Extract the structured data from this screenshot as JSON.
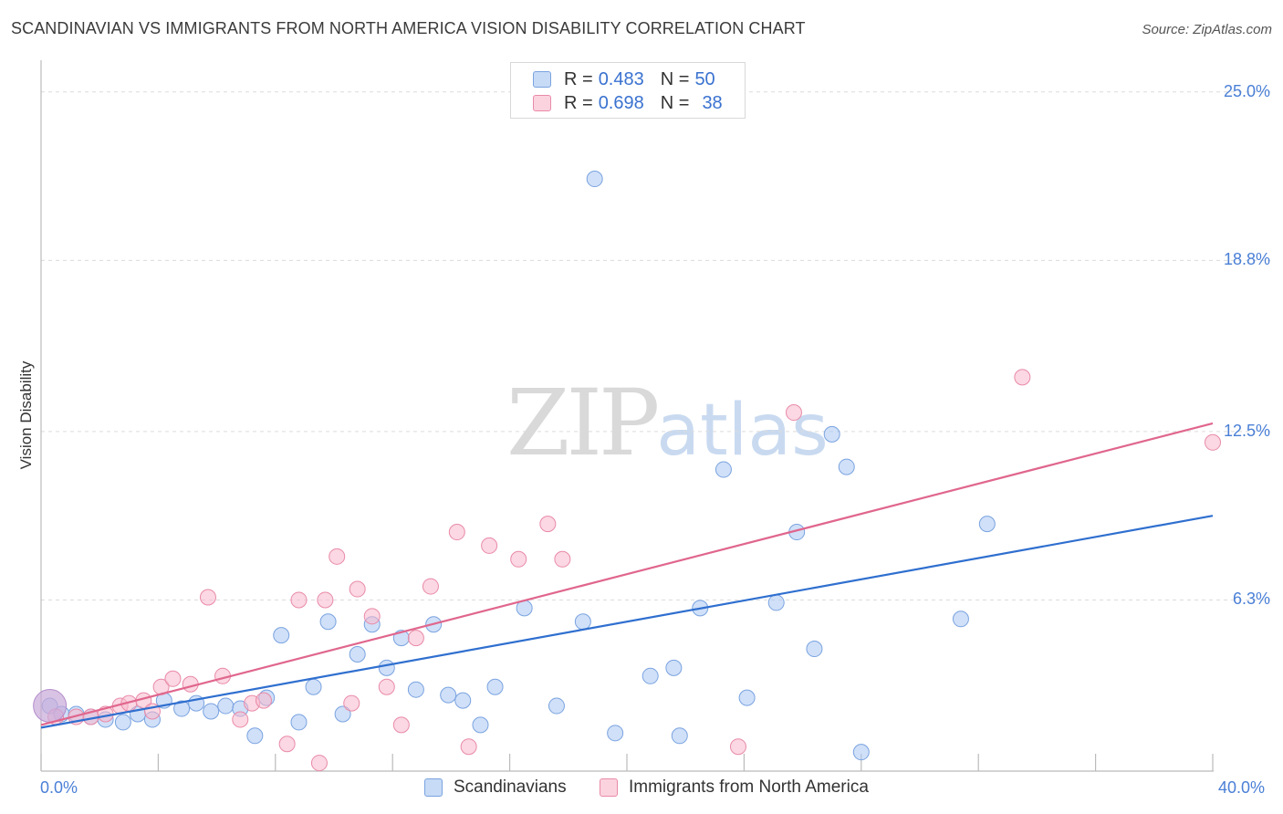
{
  "title": "SCANDINAVIAN VS IMMIGRANTS FROM NORTH AMERICA VISION DISABILITY CORRELATION CHART",
  "source": "Source: ZipAtlas.com",
  "watermark": {
    "zip": "ZIP",
    "atlas": "atlas"
  },
  "legend": {
    "rows": [
      {
        "r_label": "R =",
        "r_value": "0.483",
        "n_label": "N =",
        "n_value": "50",
        "color": "#a9c7f2"
      },
      {
        "r_label": "R =",
        "r_value": "0.698",
        "n_label": "N =",
        "n_value": "38",
        "color": "#f7b8cc"
      }
    ]
  },
  "bottom_legend": [
    "Scandinavians",
    "Immigrants from North America"
  ],
  "colors": {
    "blue_fill": "#a9c7f2",
    "blue_stroke": "#7aa3e0",
    "blue_line": "#2f6fcf",
    "pink_fill": "#f7b8cc",
    "pink_stroke": "#e98aa8",
    "pink_line": "#e0668d",
    "grid": "#dcdcdc",
    "tick_text": "#4a7fd6"
  },
  "chart_data": {
    "type": "scatter",
    "xlabel": "",
    "ylabel": "Vision Disability",
    "xlim": [
      0,
      40
    ],
    "ylim": [
      0,
      26
    ],
    "x_ticks": [
      "0.0%",
      "40.0%"
    ],
    "y_ticks": [
      {
        "value": 6.3,
        "label": "6.3%"
      },
      {
        "value": 12.5,
        "label": "12.5%"
      },
      {
        "value": 18.8,
        "label": "18.8%"
      },
      {
        "value": 25.0,
        "label": "25.0%"
      }
    ],
    "grid": true,
    "series": [
      {
        "name": "Scandinavians",
        "points": [
          [
            0.3,
            2.4
          ],
          [
            0.7,
            2.1
          ],
          [
            1.2,
            2.1
          ],
          [
            1.7,
            2.0
          ],
          [
            2.2,
            1.9
          ],
          [
            2.8,
            1.8
          ],
          [
            3.3,
            2.1
          ],
          [
            3.8,
            1.9
          ],
          [
            4.2,
            2.6
          ],
          [
            4.8,
            2.3
          ],
          [
            5.3,
            2.5
          ],
          [
            5.8,
            2.2
          ],
          [
            6.3,
            2.4
          ],
          [
            6.8,
            2.3
          ],
          [
            7.3,
            1.3
          ],
          [
            7.7,
            2.7
          ],
          [
            8.2,
            5.0
          ],
          [
            8.8,
            1.8
          ],
          [
            9.3,
            3.1
          ],
          [
            9.8,
            5.5
          ],
          [
            10.3,
            2.1
          ],
          [
            10.8,
            4.3
          ],
          [
            11.3,
            5.4
          ],
          [
            11.8,
            3.8
          ],
          [
            12.3,
            4.9
          ],
          [
            12.8,
            3.0
          ],
          [
            13.4,
            5.4
          ],
          [
            13.9,
            2.8
          ],
          [
            14.4,
            2.6
          ],
          [
            15.0,
            1.7
          ],
          [
            15.5,
            3.1
          ],
          [
            16.5,
            6.0
          ],
          [
            17.6,
            2.4
          ],
          [
            18.5,
            5.5
          ],
          [
            18.9,
            21.8
          ],
          [
            19.6,
            1.4
          ],
          [
            20.8,
            3.5
          ],
          [
            21.6,
            3.8
          ],
          [
            21.8,
            1.3
          ],
          [
            22.5,
            6.0
          ],
          [
            23.3,
            11.1
          ],
          [
            24.1,
            2.7
          ],
          [
            25.1,
            6.2
          ],
          [
            25.8,
            8.8
          ],
          [
            26.4,
            4.5
          ],
          [
            27.0,
            12.4
          ],
          [
            27.5,
            11.2
          ],
          [
            28.0,
            0.7
          ],
          [
            31.4,
            5.6
          ],
          [
            32.3,
            9.1
          ]
        ]
      },
      {
        "name": "Immigrants from North America",
        "points": [
          [
            0.5,
            2.0
          ],
          [
            1.2,
            2.0
          ],
          [
            1.7,
            2.0
          ],
          [
            2.2,
            2.1
          ],
          [
            2.7,
            2.4
          ],
          [
            3.0,
            2.5
          ],
          [
            3.5,
            2.6
          ],
          [
            3.8,
            2.2
          ],
          [
            4.1,
            3.1
          ],
          [
            4.5,
            3.4
          ],
          [
            5.1,
            3.2
          ],
          [
            5.7,
            6.4
          ],
          [
            6.2,
            3.5
          ],
          [
            6.8,
            1.9
          ],
          [
            7.2,
            2.5
          ],
          [
            7.6,
            2.6
          ],
          [
            8.4,
            1.0
          ],
          [
            8.8,
            6.3
          ],
          [
            9.5,
            0.3
          ],
          [
            9.7,
            6.3
          ],
          [
            10.1,
            7.9
          ],
          [
            10.6,
            2.5
          ],
          [
            10.8,
            6.7
          ],
          [
            11.3,
            5.7
          ],
          [
            11.8,
            3.1
          ],
          [
            12.3,
            1.7
          ],
          [
            12.8,
            4.9
          ],
          [
            13.3,
            6.8
          ],
          [
            14.2,
            8.8
          ],
          [
            14.6,
            0.9
          ],
          [
            15.3,
            8.3
          ],
          [
            16.3,
            7.8
          ],
          [
            17.3,
            9.1
          ],
          [
            17.8,
            7.8
          ],
          [
            23.8,
            0.9
          ],
          [
            25.7,
            13.2
          ],
          [
            33.5,
            14.5
          ],
          [
            40.0,
            12.1
          ]
        ]
      }
    ],
    "trendlines": [
      {
        "name": "Scandinavians",
        "x": [
          0,
          40
        ],
        "y": [
          1.6,
          9.4
        ]
      },
      {
        "name": "Immigrants from North America",
        "x": [
          0,
          40
        ],
        "y": [
          1.7,
          12.8
        ]
      }
    ]
  }
}
